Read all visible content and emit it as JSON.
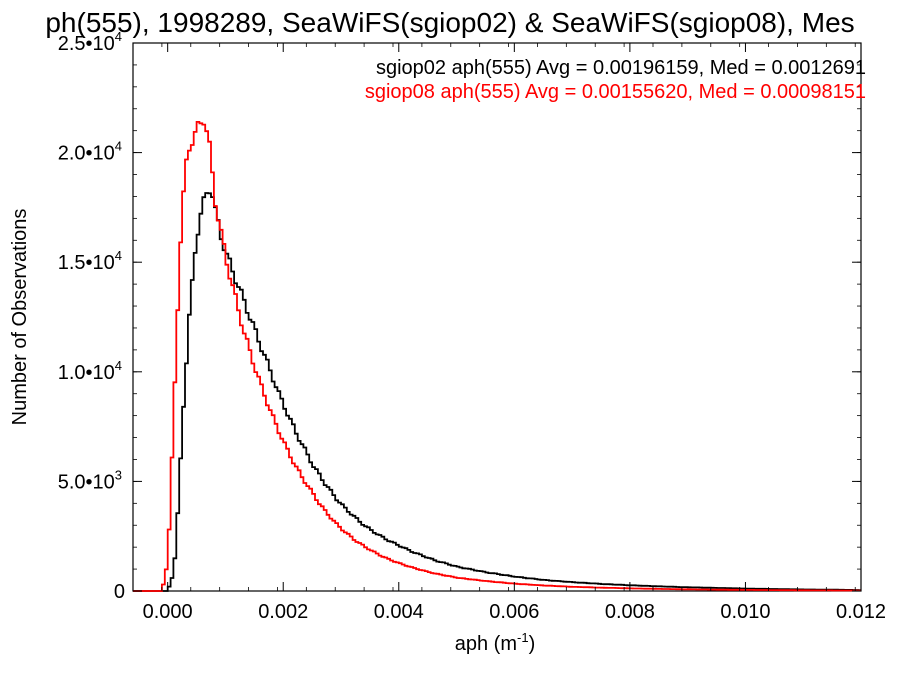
{
  "chart_data": {
    "type": "line",
    "title": "ph(555), 1998289, SeaWiFS(sgiop02) & SeaWiFS(sgiop08), Mes",
    "xlabel": "aph (m",
    "xlabel_sup": "-1",
    "xlabel_tail": ")",
    "ylabel": "Number of Observations",
    "xlim": [
      -0.0006,
      0.012
    ],
    "ylim": [
      0,
      25000
    ],
    "xticks": [
      {
        "v": 0.0,
        "label": "0.000"
      },
      {
        "v": 0.002,
        "label": "0.002"
      },
      {
        "v": 0.004,
        "label": "0.004"
      },
      {
        "v": 0.006,
        "label": "0.006"
      },
      {
        "v": 0.008,
        "label": "0.008"
      },
      {
        "v": 0.01,
        "label": "0.010"
      },
      {
        "v": 0.012,
        "label": "0.012"
      }
    ],
    "yticks": [
      {
        "v": 0,
        "mant": "0",
        "exp": ""
      },
      {
        "v": 5000,
        "mant": "5.0•10",
        "exp": "3"
      },
      {
        "v": 10000,
        "mant": "1.0•10",
        "exp": "4"
      },
      {
        "v": 15000,
        "mant": "1.5•10",
        "exp": "4"
      },
      {
        "v": 20000,
        "mant": "2.0•10",
        "exp": "4"
      },
      {
        "v": 25000,
        "mant": "2.5•10",
        "exp": "4"
      }
    ],
    "legend": [
      {
        "text": "sgiop02 aph(555) Avg = 0.00196159, Med = 0.0012691",
        "color": "#000000"
      },
      {
        "text": "sgiop08 aph(555) Avg = 0.00155620, Med = 0.00098151",
        "color": "#ff0000"
      }
    ],
    "legend_position": "top-right",
    "grid": false,
    "series": [
      {
        "color": "#000000",
        "points": [
          [
            -0.0006,
            0
          ],
          [
            -5e-05,
            0
          ],
          [
            0.0,
            200
          ],
          [
            5e-05,
            600
          ],
          [
            0.0001,
            1500
          ],
          [
            0.00015,
            3500
          ],
          [
            0.0002,
            6000
          ],
          [
            0.00025,
            8500
          ],
          [
            0.0003,
            10500
          ],
          [
            0.00035,
            12500
          ],
          [
            0.0004,
            14000
          ],
          [
            0.00045,
            15500
          ],
          [
            0.0005,
            16500
          ],
          [
            0.00055,
            17200
          ],
          [
            0.0006,
            17700
          ],
          [
            0.00065,
            18100
          ],
          [
            0.0007,
            18400
          ],
          [
            0.00075,
            18100
          ],
          [
            0.0008,
            17300
          ],
          [
            0.0009,
            16200
          ],
          [
            0.001,
            15300
          ],
          [
            0.0011,
            14600
          ],
          [
            0.0012,
            13900
          ],
          [
            0.0013,
            13200
          ],
          [
            0.0014,
            12500
          ],
          [
            0.0015,
            11800
          ],
          [
            0.0016,
            11100
          ],
          [
            0.0017,
            10400
          ],
          [
            0.0018,
            9700
          ],
          [
            0.0019,
            9000
          ],
          [
            0.002,
            8400
          ],
          [
            0.0021,
            7800
          ],
          [
            0.0022,
            7200
          ],
          [
            0.0023,
            6700
          ],
          [
            0.0024,
            6200
          ],
          [
            0.0025,
            5700
          ],
          [
            0.0026,
            5300
          ],
          [
            0.0027,
            4900
          ],
          [
            0.0028,
            4550
          ],
          [
            0.0029,
            4200
          ],
          [
            0.003,
            3900
          ],
          [
            0.0032,
            3400
          ],
          [
            0.0034,
            2950
          ],
          [
            0.0036,
            2600
          ],
          [
            0.0038,
            2300
          ],
          [
            0.004,
            2050
          ],
          [
            0.0042,
            1800
          ],
          [
            0.0044,
            1600
          ],
          [
            0.0046,
            1400
          ],
          [
            0.0048,
            1250
          ],
          [
            0.005,
            1100
          ],
          [
            0.0055,
            850
          ],
          [
            0.006,
            650
          ],
          [
            0.0065,
            500
          ],
          [
            0.007,
            400
          ],
          [
            0.0075,
            320
          ],
          [
            0.008,
            260
          ],
          [
            0.0085,
            210
          ],
          [
            0.009,
            170
          ],
          [
            0.0095,
            140
          ],
          [
            0.01,
            110
          ],
          [
            0.0105,
            90
          ],
          [
            0.011,
            70
          ],
          [
            0.0115,
            60
          ],
          [
            0.012,
            40
          ]
        ]
      },
      {
        "color": "#ff0000",
        "points": [
          [
            -0.0006,
            0
          ],
          [
            -0.00015,
            0
          ],
          [
            -0.0001,
            300
          ],
          [
            -5e-05,
            1000
          ],
          [
            0.0,
            2800
          ],
          [
            5e-05,
            6000
          ],
          [
            0.0001,
            9500
          ],
          [
            0.00015,
            13000
          ],
          [
            0.0002,
            16000
          ],
          [
            0.00025,
            18000
          ],
          [
            0.0003,
            19500
          ],
          [
            0.00035,
            20300
          ],
          [
            0.0004,
            20600
          ],
          [
            0.00045,
            20800
          ],
          [
            0.0005,
            21100
          ],
          [
            0.00055,
            21400
          ],
          [
            0.0006,
            21600
          ],
          [
            0.00065,
            21000
          ],
          [
            0.0007,
            20200
          ],
          [
            0.00075,
            19000
          ],
          [
            0.0008,
            17800
          ],
          [
            0.0009,
            16300
          ],
          [
            0.001,
            15000
          ],
          [
            0.0011,
            13900
          ],
          [
            0.0012,
            12800
          ],
          [
            0.0013,
            11800
          ],
          [
            0.0014,
            10900
          ],
          [
            0.0015,
            10100
          ],
          [
            0.0016,
            9300
          ],
          [
            0.0017,
            8600
          ],
          [
            0.0018,
            7900
          ],
          [
            0.0019,
            7300
          ],
          [
            0.002,
            6700
          ],
          [
            0.0021,
            6150
          ],
          [
            0.0022,
            5650
          ],
          [
            0.0023,
            5200
          ],
          [
            0.0024,
            4800
          ],
          [
            0.0025,
            4400
          ],
          [
            0.0026,
            4000
          ],
          [
            0.0027,
            3650
          ],
          [
            0.0028,
            3350
          ],
          [
            0.0029,
            3050
          ],
          [
            0.003,
            2800
          ],
          [
            0.0032,
            2350
          ],
          [
            0.0034,
            2000
          ],
          [
            0.0036,
            1700
          ],
          [
            0.0038,
            1450
          ],
          [
            0.004,
            1250
          ],
          [
            0.0042,
            1080
          ],
          [
            0.0044,
            930
          ],
          [
            0.0046,
            800
          ],
          [
            0.0048,
            700
          ],
          [
            0.005,
            600
          ],
          [
            0.0055,
            450
          ],
          [
            0.006,
            330
          ],
          [
            0.0065,
            250
          ],
          [
            0.007,
            190
          ],
          [
            0.0075,
            150
          ],
          [
            0.008,
            120
          ],
          [
            0.0085,
            95
          ],
          [
            0.009,
            75
          ],
          [
            0.0095,
            60
          ],
          [
            0.01,
            50
          ],
          [
            0.0105,
            40
          ],
          [
            0.011,
            30
          ],
          [
            0.0115,
            25
          ],
          [
            0.012,
            20
          ]
        ]
      }
    ]
  }
}
